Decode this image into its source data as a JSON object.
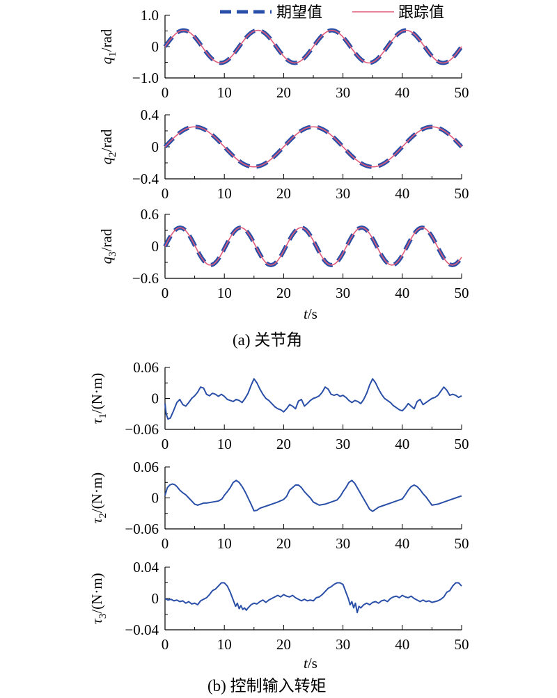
{
  "chart_data": [
    {
      "type": "line",
      "panel": "a",
      "ylabel_base": "q",
      "ylabel_sub": "1",
      "ylabel_unit": "/rad",
      "xlim": [
        0,
        50
      ],
      "ylim": [
        -1.0,
        1.0
      ],
      "xticks": [
        "0",
        "10",
        "20",
        "30",
        "40",
        "50"
      ],
      "yticks": [
        "1.0",
        "0",
        "−1.0"
      ],
      "ytick_values": [
        1.0,
        0,
        -1.0
      ],
      "wave": {
        "amplitude": 0.52,
        "period": 12.5,
        "phase": 0
      },
      "series": [
        {
          "name": "期望值",
          "style": "dashed",
          "color": "#2a4fa8"
        },
        {
          "name": "跟踪值",
          "style": "solid",
          "color": "#e05a7a"
        }
      ]
    },
    {
      "type": "line",
      "panel": "a",
      "ylabel_base": "q",
      "ylabel_sub": "2",
      "ylabel_unit": "/rad",
      "xlim": [
        0,
        50
      ],
      "ylim": [
        -0.4,
        0.4
      ],
      "xticks": [
        "0",
        "10",
        "20",
        "30",
        "40",
        "50"
      ],
      "yticks": [
        "0.4",
        "0",
        "−0.4"
      ],
      "ytick_values": [
        0.4,
        0,
        -0.4
      ],
      "wave": {
        "amplitude": 0.25,
        "period": 20,
        "phase": 0
      },
      "series": [
        {
          "name": "期望值",
          "style": "dashed",
          "color": "#2a4fa8"
        },
        {
          "name": "跟踪值",
          "style": "solid",
          "color": "#e05a7a"
        }
      ]
    },
    {
      "type": "line",
      "panel": "a",
      "ylabel_base": "q",
      "ylabel_sub": "3",
      "ylabel_unit": "/rad",
      "xlim": [
        0,
        50
      ],
      "ylim": [
        -0.6,
        0.6
      ],
      "xticks": [
        "0",
        "10",
        "20",
        "30",
        "40",
        "50"
      ],
      "yticks": [
        "0.6",
        "0",
        "−0.6"
      ],
      "ytick_values": [
        0.6,
        0,
        -0.6
      ],
      "wave": {
        "amplitude": 0.35,
        "period": 10.2,
        "phase": 0
      },
      "series": [
        {
          "name": "期望值",
          "style": "dashed",
          "color": "#2a4fa8"
        },
        {
          "name": "跟踪值",
          "style": "solid",
          "color": "#e05a7a"
        }
      ]
    },
    {
      "type": "line",
      "panel": "b",
      "ylabel_base": "τ",
      "ylabel_sub": "1",
      "ylabel_unit": "/(N·m)",
      "xlim": [
        0,
        50
      ],
      "ylim": [
        -0.06,
        0.06
      ],
      "xticks": [
        "0",
        "10",
        "20",
        "30",
        "40",
        "50"
      ],
      "yticks": [
        "0.06",
        "0",
        "−0.06"
      ],
      "ytick_values": [
        0.06,
        0,
        -0.06
      ],
      "series": [
        {
          "color": "#2a4fa8",
          "x": [
            0,
            0.2,
            0.5,
            0.9,
            1.4,
            2.0,
            2.5,
            3.0,
            3.5,
            4.0,
            4.5,
            5.0,
            5.5,
            6.0,
            6.5,
            7.0,
            7.5,
            8.0,
            8.5,
            9.0,
            9.5,
            10.0,
            10.5,
            11.0,
            11.5,
            12.0,
            12.5,
            13.0,
            13.5,
            14.0,
            14.5,
            15.0,
            15.5,
            16.0,
            16.5,
            17.0,
            17.5,
            18.0,
            18.5,
            19.0,
            19.5,
            20.0,
            20.5,
            21.0,
            21.5,
            22.0,
            22.5,
            23.0,
            23.5,
            24.0,
            24.5,
            25.0,
            25.5,
            26.0,
            26.5,
            27.0,
            27.5,
            28.0,
            28.5,
            29.0,
            29.5,
            30.0,
            30.5,
            31.0,
            31.5,
            32.0,
            32.5,
            33.0,
            33.5,
            34.0,
            34.5,
            35.0,
            35.5,
            36.0,
            36.5,
            37.0,
            37.5,
            38.0,
            38.5,
            39.0,
            39.5,
            40.0,
            40.5,
            41.0,
            41.5,
            42.0,
            42.5,
            43.0,
            43.5,
            44.0,
            44.5,
            45.0,
            45.5,
            46.0,
            46.5,
            47.0,
            47.5,
            48.0,
            48.5,
            49.0,
            49.5,
            50.0
          ],
          "values": [
            -0.01,
            -0.03,
            -0.04,
            -0.038,
            -0.025,
            -0.008,
            -0.002,
            -0.012,
            -0.015,
            -0.008,
            0.0,
            0.005,
            0.012,
            0.022,
            0.02,
            0.008,
            0.005,
            0.01,
            0.008,
            0.004,
            0.008,
            0.004,
            -0.002,
            -0.004,
            -0.006,
            -0.002,
            -0.004,
            -0.008,
            0.0,
            0.01,
            0.025,
            0.038,
            0.03,
            0.018,
            0.008,
            0.0,
            -0.004,
            -0.01,
            -0.016,
            -0.02,
            -0.022,
            -0.026,
            -0.02,
            -0.012,
            -0.015,
            -0.02,
            -0.005,
            -0.002,
            -0.015,
            -0.01,
            -0.004,
            0.0,
            0.002,
            0.005,
            0.012,
            0.022,
            0.018,
            0.008,
            0.006,
            0.008,
            0.004,
            0.006,
            0.002,
            -0.004,
            -0.008,
            -0.004,
            -0.006,
            -0.01,
            -0.002,
            0.01,
            0.026,
            0.038,
            0.03,
            0.018,
            0.008,
            0.0,
            -0.004,
            -0.008,
            -0.014,
            -0.018,
            -0.022,
            -0.024,
            -0.018,
            -0.01,
            -0.015,
            -0.02,
            -0.006,
            -0.002,
            -0.012,
            -0.008,
            -0.004,
            0.0,
            0.002,
            0.006,
            0.014,
            0.022,
            0.016,
            0.006,
            0.008,
            0.006,
            0.002,
            0.005
          ]
        }
      ]
    },
    {
      "type": "line",
      "panel": "b",
      "ylabel_base": "τ",
      "ylabel_sub": "2",
      "ylabel_unit": "/(N·m)",
      "xlim": [
        0,
        50
      ],
      "ylim": [
        -0.06,
        0.06
      ],
      "xticks": [
        "0",
        "10",
        "20",
        "30",
        "40",
        "50"
      ],
      "yticks": [
        "0.06",
        "0",
        "−0.06"
      ],
      "ytick_values": [
        0.06,
        0,
        -0.06
      ],
      "series": [
        {
          "color": "#2a4fa8",
          "x": [
            0,
            0.4,
            0.8,
            1.2,
            1.6,
            2.0,
            2.5,
            3.0,
            3.5,
            4.0,
            4.5,
            5.0,
            5.5,
            6.0,
            6.5,
            7.0,
            8.0,
            9.0,
            9.6,
            10.0,
            10.5,
            11.0,
            11.5,
            12.0,
            12.5,
            13.0,
            13.5,
            14.0,
            14.5,
            15.0,
            15.5,
            16.0,
            17.0,
            18.0,
            19.0,
            20.0,
            20.5,
            21.0,
            21.5,
            22.0,
            22.5,
            23.0,
            23.5,
            24.0,
            24.5,
            25.0,
            26.0,
            27.0,
            28.0,
            29.0,
            29.6,
            30.0,
            30.5,
            31.0,
            31.5,
            32.0,
            32.5,
            33.0,
            33.5,
            34.0,
            34.5,
            35.0,
            35.5,
            36.0,
            37.0,
            38.0,
            39.0,
            40.0,
            40.5,
            41.0,
            41.5,
            42.0,
            42.5,
            43.0,
            43.5,
            44.0,
            44.5,
            45.0,
            46.0,
            47.0,
            48.0,
            49.0,
            50.0
          ],
          "values": [
            0.005,
            0.02,
            0.025,
            0.027,
            0.026,
            0.022,
            0.015,
            0.01,
            0.006,
            0.0,
            -0.006,
            -0.012,
            -0.014,
            -0.012,
            -0.01,
            -0.01,
            -0.008,
            -0.006,
            -0.002,
            0.005,
            0.012,
            0.02,
            0.03,
            0.034,
            0.03,
            0.022,
            0.012,
            0.0,
            -0.012,
            -0.025,
            -0.024,
            -0.02,
            -0.016,
            -0.012,
            -0.008,
            -0.003,
            0.003,
            0.015,
            0.02,
            0.025,
            0.025,
            0.02,
            0.012,
            0.006,
            0.0,
            -0.008,
            -0.014,
            -0.012,
            -0.008,
            -0.004,
            0.004,
            0.012,
            0.02,
            0.03,
            0.034,
            0.028,
            0.018,
            0.008,
            -0.002,
            -0.012,
            -0.022,
            -0.026,
            -0.022,
            -0.018,
            -0.014,
            -0.01,
            -0.006,
            -0.002,
            0.006,
            0.015,
            0.022,
            0.025,
            0.022,
            0.016,
            0.008,
            0.002,
            -0.006,
            -0.014,
            -0.012,
            -0.008,
            -0.004,
            0.0,
            0.004
          ]
        }
      ]
    },
    {
      "type": "line",
      "panel": "b",
      "ylabel_base": "τ",
      "ylabel_sub": "3",
      "ylabel_unit": "/(N·m)",
      "xlim": [
        0,
        50
      ],
      "ylim": [
        -0.04,
        0.04
      ],
      "xticks": [
        "0",
        "10",
        "20",
        "30",
        "40",
        "50"
      ],
      "yticks": [
        "0.04",
        "0",
        "−0.04"
      ],
      "ytick_values": [
        0.04,
        0,
        -0.04
      ],
      "series": [
        {
          "color": "#2a4fa8",
          "x": [
            0,
            0.5,
            1.0,
            1.5,
            2.0,
            2.5,
            3.0,
            3.5,
            4.0,
            4.5,
            5.0,
            5.5,
            6.0,
            6.5,
            7.0,
            7.5,
            8.0,
            8.5,
            9.0,
            9.5,
            10.0,
            10.5,
            11.0,
            11.3,
            11.6,
            11.9,
            12.2,
            12.5,
            12.8,
            13.1,
            13.4,
            13.7,
            14.0,
            14.5,
            15.0,
            15.5,
            16.0,
            16.5,
            17.0,
            17.5,
            18.0,
            18.5,
            19.0,
            19.5,
            20.0,
            20.5,
            21.0,
            21.5,
            22.0,
            22.5,
            23.0,
            23.5,
            24.0,
            24.5,
            25.0,
            25.5,
            26.0,
            26.5,
            27.0,
            27.5,
            28.0,
            28.5,
            29.0,
            29.5,
            30.0,
            30.3,
            30.6,
            30.9,
            31.2,
            31.5,
            31.8,
            32.1,
            32.4,
            32.7,
            33.0,
            33.5,
            34.0,
            34.5,
            35.0,
            35.5,
            36.0,
            36.5,
            37.0,
            37.5,
            38.0,
            38.5,
            39.0,
            39.5,
            40.0,
            40.5,
            41.0,
            41.5,
            42.0,
            42.5,
            43.0,
            43.5,
            44.0,
            44.5,
            45.0,
            45.5,
            46.0,
            46.5,
            47.0,
            47.5,
            48.0,
            48.5,
            49.0,
            49.5,
            50.0
          ],
          "values": [
            0.0,
            -0.002,
            -0.001,
            -0.003,
            -0.002,
            -0.004,
            -0.003,
            -0.006,
            -0.004,
            -0.007,
            -0.006,
            -0.008,
            -0.003,
            -0.001,
            0.001,
            0.005,
            0.01,
            0.012,
            0.016,
            0.02,
            0.02,
            0.016,
            0.008,
            0.002,
            -0.004,
            -0.01,
            -0.006,
            -0.013,
            -0.009,
            -0.014,
            -0.012,
            -0.015,
            -0.012,
            -0.008,
            -0.006,
            -0.007,
            -0.004,
            -0.002,
            -0.005,
            -0.002,
            0.0,
            0.002,
            0.004,
            0.002,
            0.005,
            0.003,
            0.002,
            0.004,
            0.001,
            -0.001,
            -0.003,
            -0.001,
            -0.003,
            -0.002,
            -0.003,
            0.001,
            0.002,
            0.005,
            0.009,
            0.013,
            0.015,
            0.018,
            0.02,
            0.02,
            0.018,
            0.012,
            0.006,
            0.0,
            -0.008,
            -0.004,
            -0.012,
            -0.006,
            -0.018,
            -0.01,
            -0.012,
            -0.008,
            -0.006,
            -0.008,
            -0.005,
            -0.004,
            -0.006,
            -0.003,
            -0.002,
            -0.004,
            0.0,
            0.002,
            0.003,
            0.001,
            0.004,
            0.002,
            0.001,
            0.003,
            0.0,
            -0.002,
            -0.004,
            -0.002,
            -0.004,
            -0.003,
            -0.005,
            -0.004,
            -0.003,
            -0.001,
            0.002,
            0.008,
            0.01,
            0.016,
            0.02,
            0.02,
            0.016
          ]
        }
      ]
    }
  ],
  "legend": {
    "desired": "期望值",
    "tracking": "跟踪值"
  },
  "xaxis_label": {
    "base": "t",
    "unit": "/s"
  },
  "captions": {
    "a": "(a) 关节角",
    "b": "(b) 控制输入转矩"
  }
}
